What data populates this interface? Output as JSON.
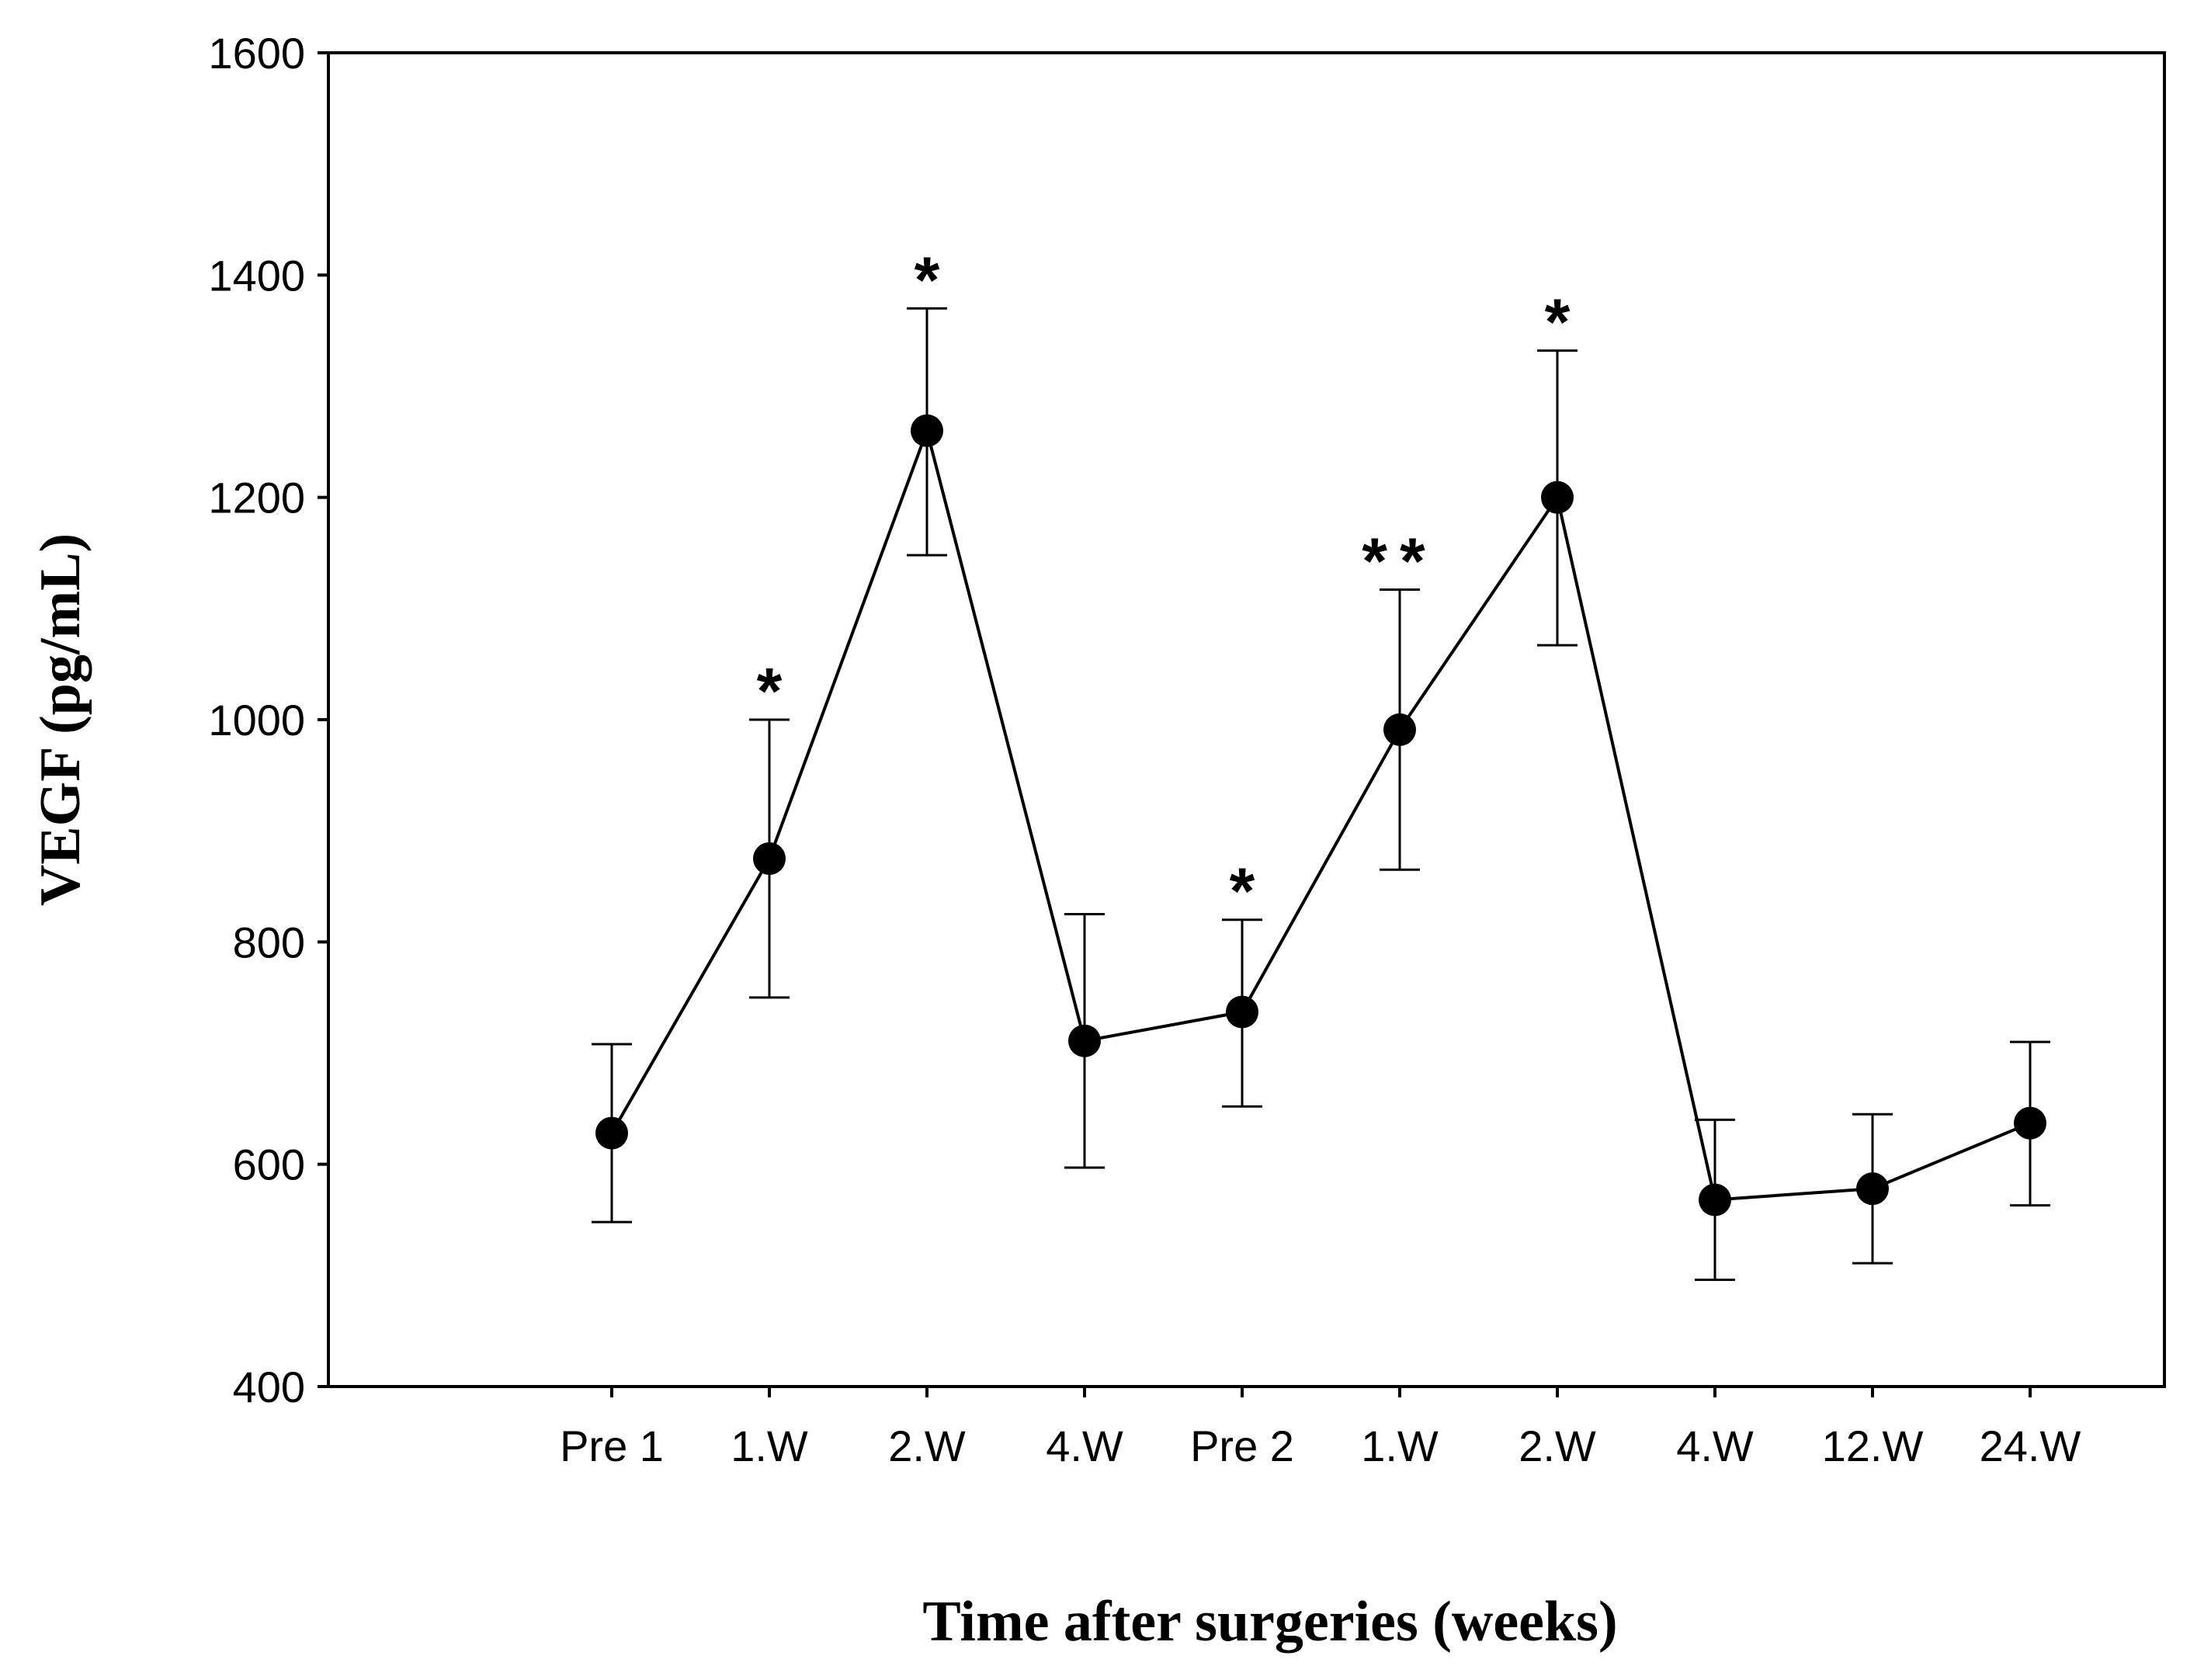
{
  "chart_data": {
    "type": "line",
    "title": "",
    "xlabel": "Time after surgeries (weeks)",
    "ylabel": "VEGF (pg/mL)",
    "ylim": [
      400,
      1600
    ],
    "yticks": [
      400,
      600,
      800,
      1000,
      1200,
      1400,
      1600
    ],
    "grid": false,
    "categories": [
      "Pre 1",
      "1.W",
      "2.W",
      "4.W",
      "Pre 2",
      "1.W",
      "2.W",
      "4.W",
      "12.W",
      "24.W"
    ],
    "series": [
      {
        "name": "VEGF",
        "values": [
          628,
          875,
          1260,
          711,
          737,
          991,
          1200,
          568,
          578,
          637
        ],
        "error_upper": [
          708,
          1000,
          1370,
          825,
          820,
          1117,
          1332,
          640,
          645,
          710
        ],
        "error_lower": [
          548,
          750,
          1148,
          597,
          652,
          865,
          1067,
          496,
          511,
          563
        ],
        "significance": [
          "",
          "*",
          "*",
          "",
          "*",
          "**",
          "*",
          "",
          "",
          ""
        ]
      }
    ]
  }
}
